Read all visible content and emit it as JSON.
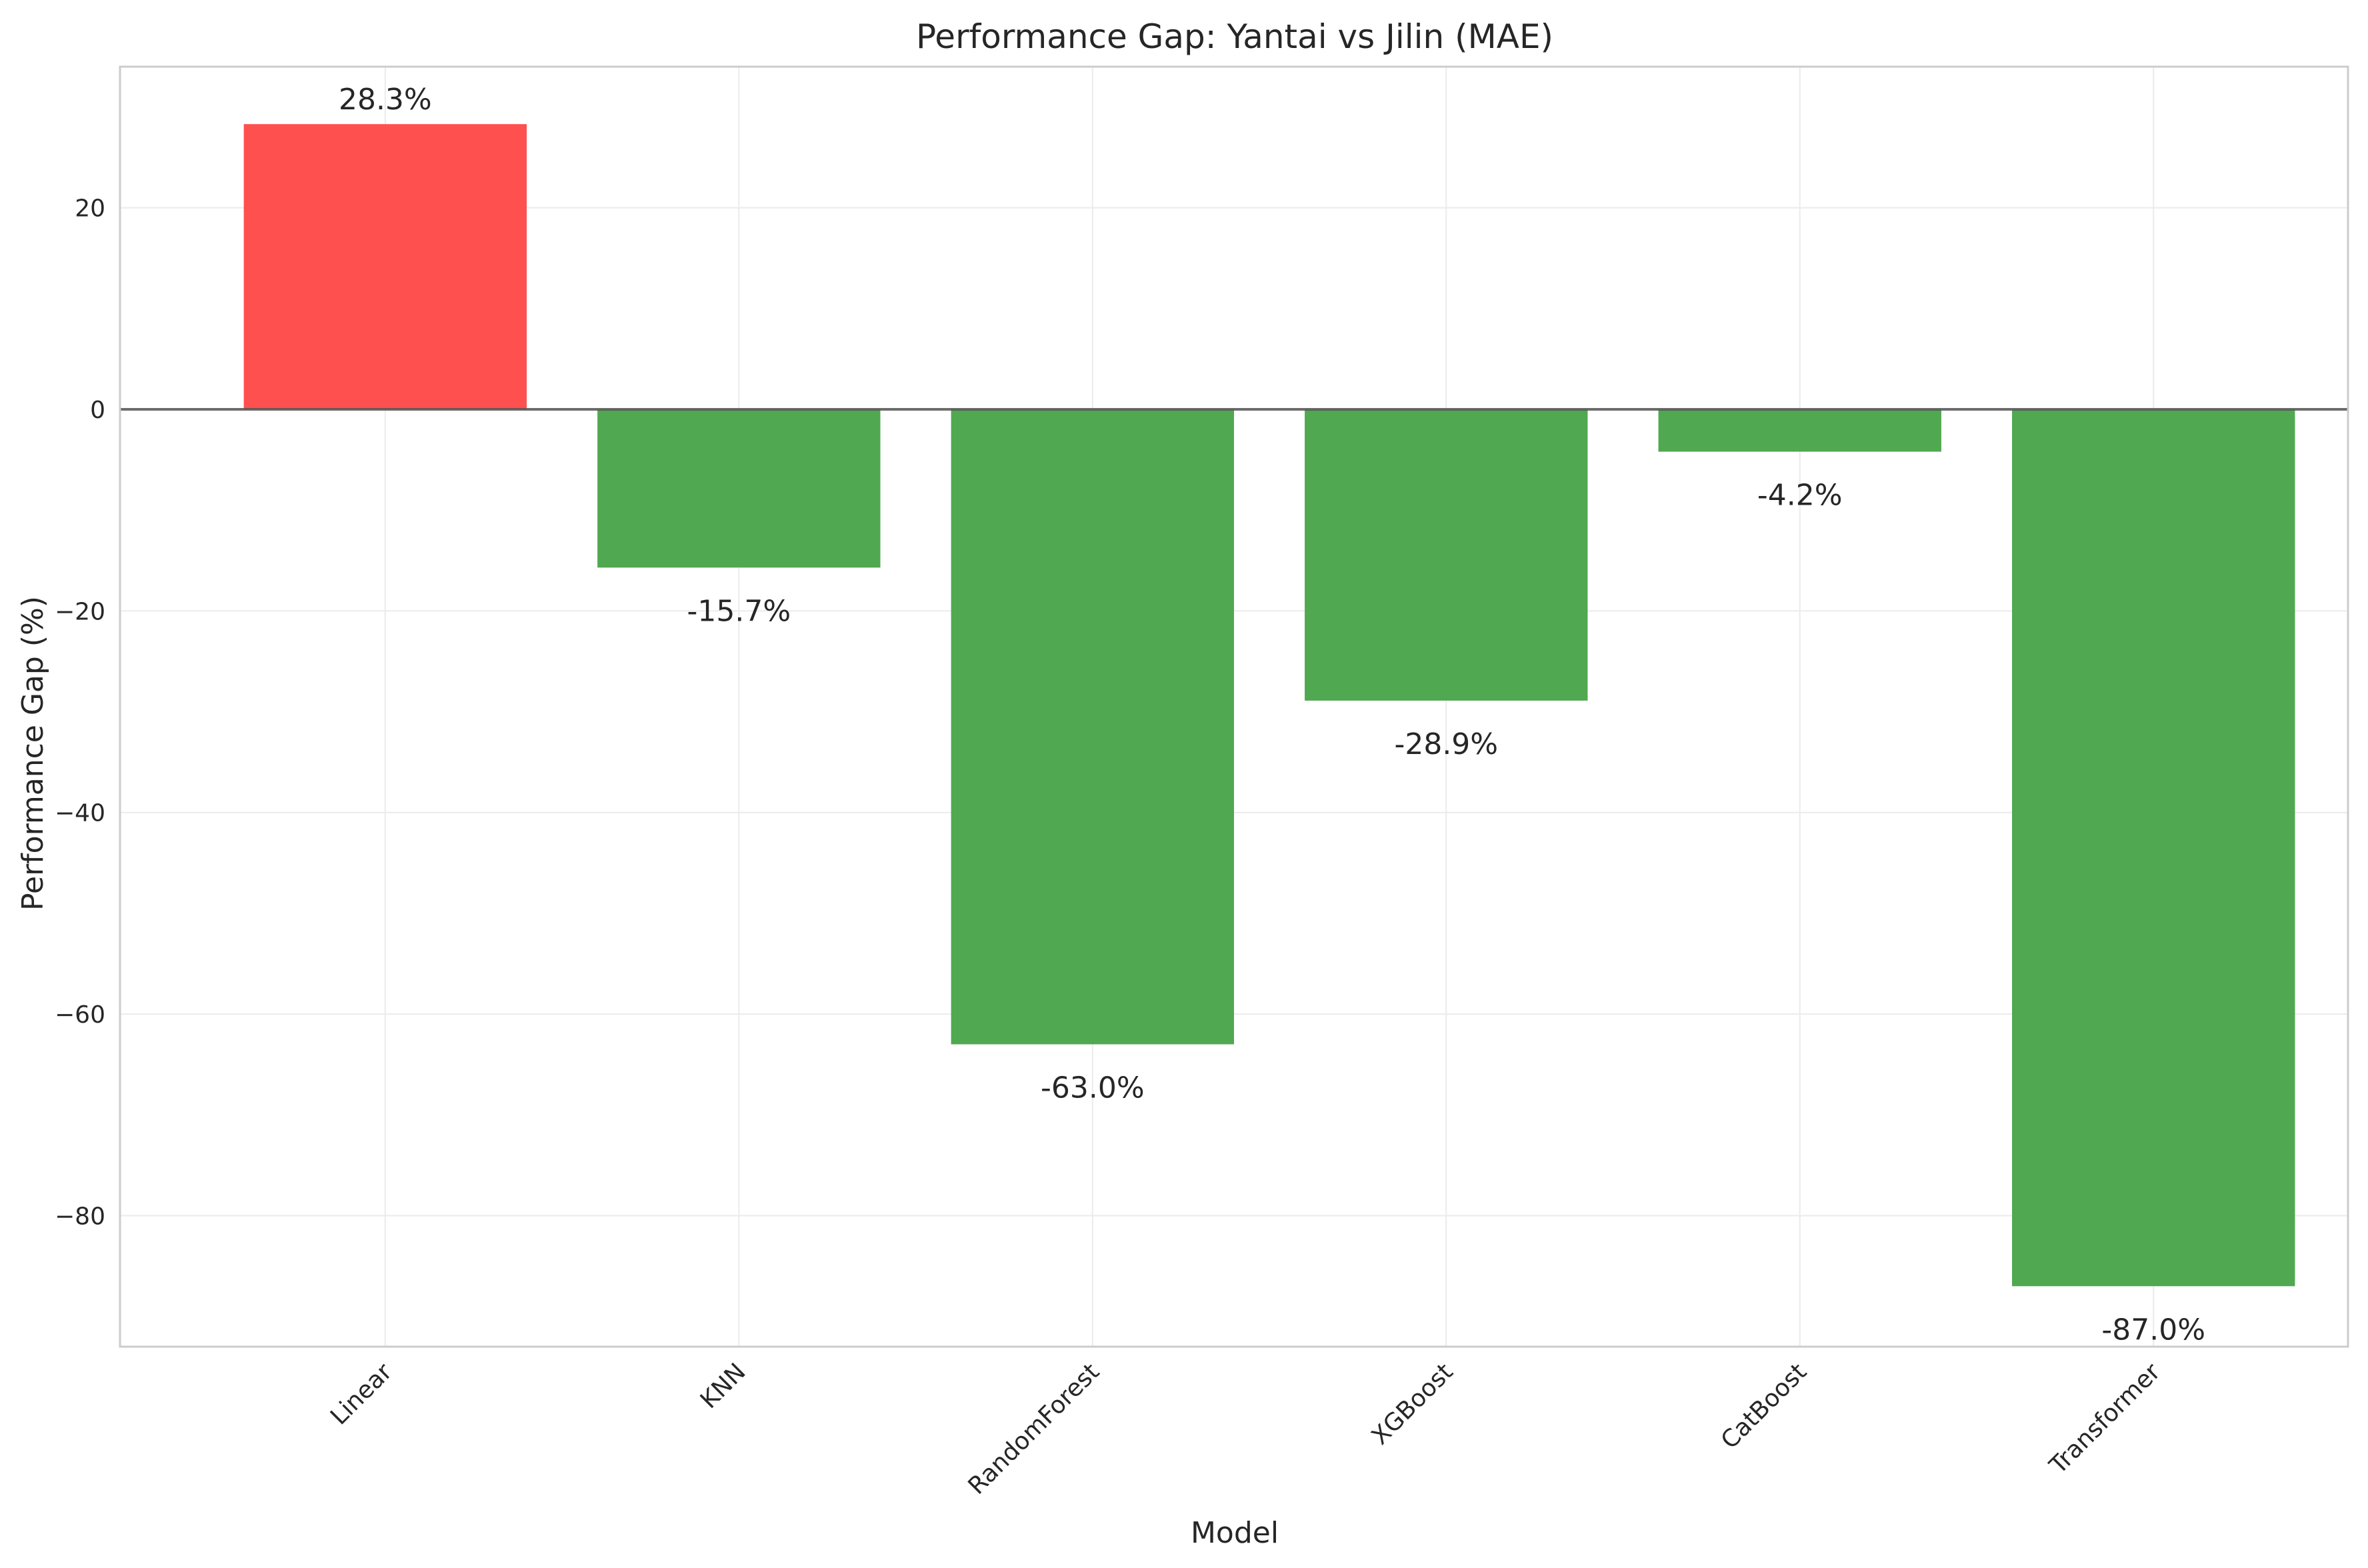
{
  "chart_data": {
    "type": "bar",
    "title": "Performance Gap: Yantai vs Jilin (MAE)",
    "xlabel": "Model",
    "ylabel": "Performance Gap (%)",
    "categories": [
      "Linear",
      "KNN",
      "RandomForest",
      "XGBoost",
      "CatBoost",
      "Transformer"
    ],
    "values": [
      28.3,
      -15.7,
      -63.0,
      -28.9,
      -4.2,
      -87.0
    ],
    "value_labels": [
      "28.3%",
      "-15.7%",
      "-63.0%",
      "-28.9%",
      "-4.2%",
      "-87.0%"
    ],
    "ylim": [
      -93,
      34
    ],
    "yticks": [
      20,
      0,
      -20,
      -40,
      -60,
      -80
    ],
    "ytick_labels": [
      "20",
      "0",
      "−20",
      "−40",
      "−60",
      "−80"
    ],
    "grid": true,
    "legend": "none",
    "colors": {
      "positive": "#ff4d4d",
      "negative": "#4da64d",
      "zero_line": "#555555"
    }
  }
}
